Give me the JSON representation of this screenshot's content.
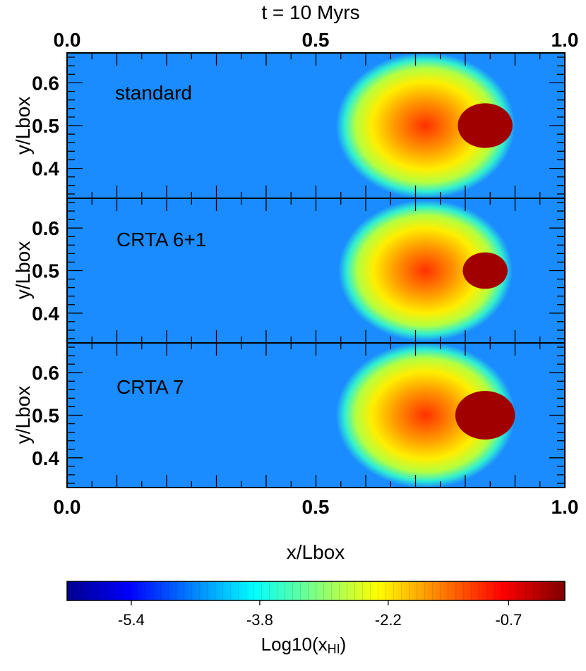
{
  "chart_data": {
    "type": "heatmap",
    "title": "t = 10 Myrs",
    "xlabel": "x/Lbox",
    "ylabel": "y/Lbox",
    "xlim": [
      0.0,
      1.0
    ],
    "ylim": [
      0.33,
      0.67
    ],
    "x_ticks": [
      "0.0",
      "0.5",
      "1.0"
    ],
    "y_ticks": [
      "0.6",
      "0.5",
      "0.4"
    ],
    "y_tick_values": [
      0.6,
      0.5,
      0.4
    ],
    "panels": [
      {
        "label": "standard",
        "core_cx": 0.84,
        "core_r": 0.055,
        "ionized_cx": 0.72,
        "ionized_r": 0.18
      },
      {
        "label": "CRTA 6+1",
        "core_cx": 0.84,
        "core_r": 0.045,
        "ionized_cx": 0.72,
        "ionized_r": 0.175
      },
      {
        "label": "CRTA 7",
        "core_cx": 0.84,
        "core_r": 0.06,
        "ionized_cx": 0.72,
        "ionized_r": 0.18
      }
    ],
    "colorbar": {
      "label": "Log10(x",
      "label_sub": "HI",
      "label_close": ")",
      "range": [
        -6.2,
        0.0
      ],
      "ticks": [
        "-5.4",
        "-3.8",
        "-2.2",
        "-0.7"
      ],
      "tick_values": [
        -5.4,
        -3.8,
        -2.2,
        -0.7
      ],
      "colormap": "jet"
    }
  }
}
